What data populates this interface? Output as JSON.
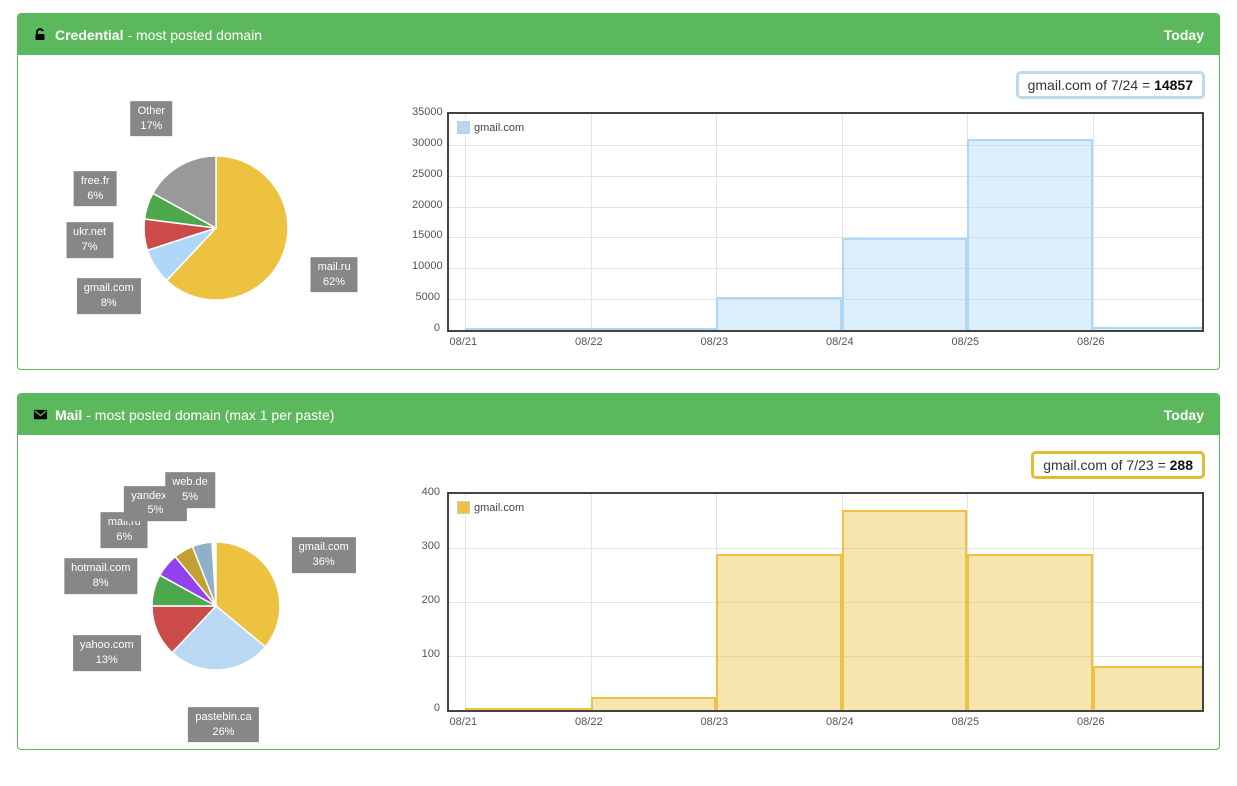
{
  "panels": [
    {
      "title": "Credential",
      "subtitle": "- most posted domain",
      "badge": "Today",
      "icon": "unlock-icon",
      "header_color": "#5cb85c",
      "callout": {
        "text": "gmail.com of 7/24 = ",
        "value": "14857",
        "border_color": "#bcd9ee"
      }
    },
    {
      "title": "Mail",
      "subtitle": "- most posted domain (max 1 per paste)",
      "badge": "Today",
      "icon": "mail-icon",
      "header_color": "#5cb85c",
      "callout": {
        "text": "gmail.com of 7/23 = ",
        "value": "288",
        "border_color": "#e3ba33"
      }
    }
  ],
  "chart_data": [
    {
      "type": "pie",
      "panel": "Credential",
      "slices": [
        {
          "label": "mail.ru",
          "pct": 62,
          "color": "#edc240"
        },
        {
          "label": "gmail.com",
          "pct": 8,
          "color": "#afd8f8"
        },
        {
          "label": "ukr.net",
          "pct": 7,
          "color": "#cb4b4b"
        },
        {
          "label": "free.fr",
          "pct": 6,
          "color": "#4da74d"
        },
        {
          "label": "Other",
          "pct": 17,
          "color": "#999999"
        }
      ]
    },
    {
      "type": "bar",
      "panel": "Credential",
      "categories": [
        "08/21",
        "08/22",
        "08/23",
        "08/24",
        "08/25",
        "08/26"
      ],
      "series": [
        {
          "name": "gmail.com",
          "color": "#afd8f8",
          "values": [
            350,
            300,
            5400,
            14857,
            30900,
            450
          ]
        }
      ],
      "ylim": [
        0,
        35000
      ],
      "yticks": [
        0,
        5000,
        10000,
        15000,
        20000,
        25000,
        30000,
        35000
      ],
      "grid": true,
      "legend_position": "top-left"
    },
    {
      "type": "pie",
      "panel": "Mail",
      "slices": [
        {
          "label": "gmail.com",
          "pct": 36,
          "color": "#edc240"
        },
        {
          "label": "pastebin.ca",
          "pct": 26,
          "color": "#b9d9f2"
        },
        {
          "label": "yahoo.com",
          "pct": 13,
          "color": "#cb4b4b"
        },
        {
          "label": "hotmail.com",
          "pct": 8,
          "color": "#4da74d"
        },
        {
          "label": "mail.ru",
          "pct": 6,
          "color": "#9440ed"
        },
        {
          "label": "yandex.ru",
          "pct": 5,
          "color": "#c2a033"
        },
        {
          "label": "web.de",
          "pct": 5,
          "color": "#8fb0c9"
        }
      ]
    },
    {
      "type": "bar",
      "panel": "Mail",
      "categories": [
        "08/21",
        "08/22",
        "08/23",
        "08/24",
        "08/25",
        "08/26"
      ],
      "series": [
        {
          "name": "gmail.com",
          "color": "#edc240",
          "values": [
            4,
            24,
            288,
            370,
            288,
            82
          ]
        }
      ],
      "ylim": [
        0,
        400
      ],
      "yticks": [
        0,
        100,
        200,
        300,
        400
      ],
      "grid": true,
      "legend_position": "top-left"
    }
  ]
}
